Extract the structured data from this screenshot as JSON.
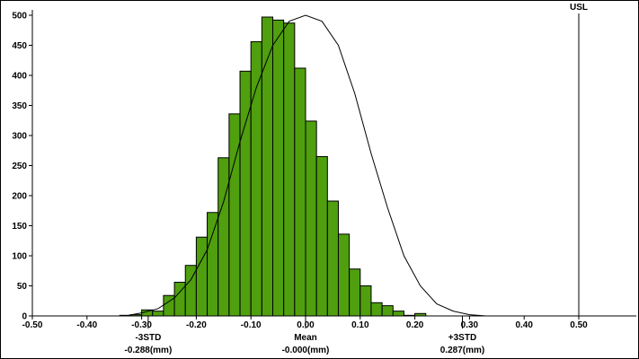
{
  "chart_data": {
    "type": "bar",
    "title": "",
    "xlabel": "",
    "ylabel": "",
    "xlim": [
      -0.5,
      0.6
    ],
    "ylim": [
      0,
      500
    ],
    "bin_width": 0.02,
    "x_ticks": [
      -0.5,
      -0.4,
      -0.3,
      -0.2,
      -0.1,
      0.0,
      0.1,
      0.2,
      0.3,
      0.4,
      0.5
    ],
    "x_tick_labels": [
      "-0.50",
      "-0.40",
      "-0.30",
      "-0.20",
      "-0.10",
      "0.00",
      "0.10",
      "0.20",
      "0.30",
      "0.40",
      "0.50"
    ],
    "y_ticks": [
      0,
      50,
      100,
      150,
      200,
      250,
      300,
      350,
      400,
      450,
      500
    ],
    "y_tick_labels": [
      "0",
      "50",
      "100",
      "150",
      "200",
      "250",
      "300",
      "350",
      "400",
      "450",
      "500"
    ],
    "bar_color": "#4f9f0f",
    "curve_color": "#000000",
    "bins_center": [
      -0.33,
      -0.31,
      -0.29,
      -0.27,
      -0.25,
      -0.23,
      -0.21,
      -0.19,
      -0.17,
      -0.15,
      -0.13,
      -0.11,
      -0.09,
      -0.07,
      -0.05,
      -0.03,
      -0.01,
      0.01,
      0.03,
      0.05,
      0.07,
      0.09,
      0.11,
      0.13,
      0.15,
      0.17,
      0.19,
      0.21,
      0.23,
      0.25,
      0.27,
      0.29,
      0.31,
      0.33
    ],
    "values": [
      1,
      2,
      10,
      8,
      34,
      56,
      84,
      131,
      172,
      263,
      336,
      407,
      456,
      497,
      492,
      487,
      412,
      324,
      265,
      191,
      136,
      78,
      50,
      22,
      17,
      8,
      1,
      4
    ],
    "values_offset_bins": 5,
    "curve": {
      "x": [
        -0.33,
        -0.3,
        -0.27,
        -0.24,
        -0.21,
        -0.18,
        -0.15,
        -0.12,
        -0.09,
        -0.06,
        -0.03,
        0.0,
        0.03,
        0.06,
        0.09,
        0.12,
        0.15,
        0.18,
        0.21,
        0.24,
        0.27,
        0.3,
        0.33
      ],
      "y": [
        0,
        5,
        12,
        30,
        60,
        110,
        190,
        290,
        380,
        450,
        490,
        500,
        490,
        450,
        370,
        270,
        180,
        100,
        50,
        20,
        8,
        2,
        0
      ]
    },
    "markers": [
      {
        "name": "USL",
        "x": 0.5,
        "label": "USL"
      }
    ],
    "annotations": [
      {
        "x": -0.288,
        "line1": "-3STD",
        "line2": "-0.288(mm)"
      },
      {
        "x": 0.0,
        "line1": "Mean",
        "line2": "-0.000(mm)"
      },
      {
        "x": 0.287,
        "line1": "+3STD",
        "line2": "0.287(mm)"
      }
    ]
  }
}
